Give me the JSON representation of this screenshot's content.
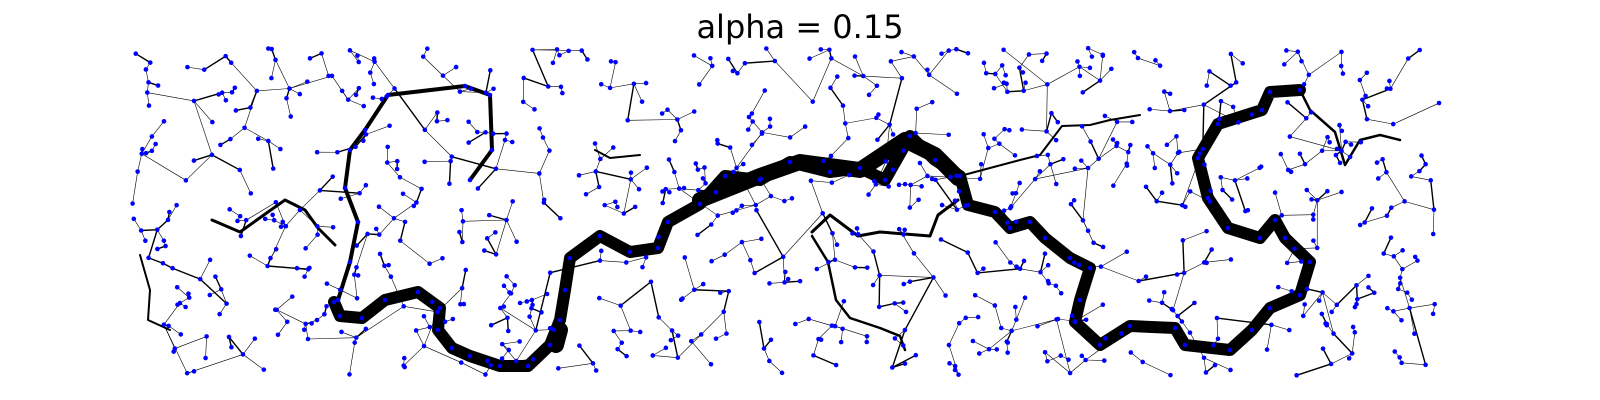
{
  "figure": {
    "title": "alpha = 0.15"
  },
  "colors": {
    "node": "#0000ff",
    "edge": "#000000",
    "background": "#ffffff"
  },
  "graph": {
    "type": "random-geometric-tree-with-flow-weighted-edges",
    "node_count_approx": 1000
  }
}
